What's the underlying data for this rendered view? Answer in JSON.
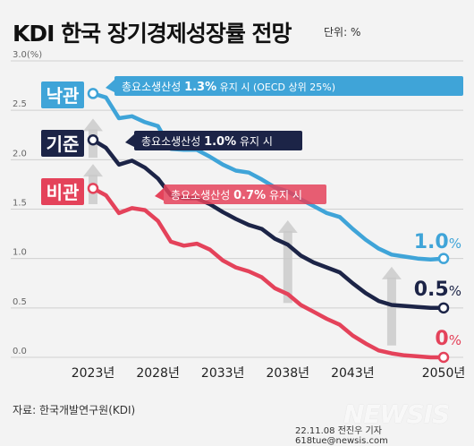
{
  "header": {
    "title": "KDI 한국 장기경제성장률 전망",
    "unit": "단위: %"
  },
  "footer": {
    "source": "자료: 한국개발연구원(KDI)",
    "credit": "22.11.08 전진우 기자 618tue@newsis.com",
    "watermark": "NEWSIS"
  },
  "colors": {
    "optimistic": "#3fa4d8",
    "baseline": "#1c2447",
    "pessimistic": "#e4425a",
    "arrow": "#c8c8c8",
    "grid": "#d0d0d0"
  },
  "chart_data": {
    "type": "line",
    "title": "KDI 한국 장기경제성장률 전망",
    "xlabel": "",
    "ylabel": "",
    "ylim": [
      0,
      3.0
    ],
    "xlim": [
      2023,
      2050
    ],
    "grid": true,
    "y_ticks": [
      "0.0",
      "0.5",
      "1.0",
      "1.5",
      "2.0",
      "2.5",
      "3.0(%)"
    ],
    "x_ticks": [
      "2023년",
      "2028년",
      "2033년",
      "2038년",
      "2043년",
      "2050년"
    ],
    "x_tick_values": [
      2023,
      2028,
      2033,
      2038,
      2043,
      2050
    ],
    "series": [
      {
        "name": "낙관",
        "label": "낙관",
        "annotation_prefix": "총요소생산성 ",
        "annotation_value": "1.3%",
        "annotation_suffix": " 유지 시 (OECD 상위 25%)",
        "end_label_num": "1.0",
        "end_label_pct": "%",
        "x": [
          2023,
          2024,
          2025,
          2026,
          2027,
          2028,
          2029,
          2030,
          2031,
          2032,
          2033,
          2034,
          2035,
          2036,
          2037,
          2038,
          2039,
          2040,
          2041,
          2042,
          2043,
          2044,
          2045,
          2046,
          2047,
          2048,
          2049,
          2050
        ],
        "values": [
          2.67,
          2.63,
          2.42,
          2.44,
          2.38,
          2.34,
          2.11,
          2.1,
          2.1,
          2.03,
          1.95,
          1.89,
          1.87,
          1.8,
          1.72,
          1.68,
          1.6,
          1.53,
          1.46,
          1.42,
          1.3,
          1.19,
          1.1,
          1.04,
          1.02,
          1.0,
          0.99,
          1.0
        ]
      },
      {
        "name": "기준",
        "label": "기준",
        "annotation_prefix": "총요소생산성 ",
        "annotation_value": "1.0%",
        "annotation_suffix": " 유지 시",
        "end_label_num": "0.5",
        "end_label_pct": "%",
        "x": [
          2023,
          2024,
          2025,
          2026,
          2027,
          2028,
          2029,
          2030,
          2031,
          2032,
          2033,
          2034,
          2035,
          2036,
          2037,
          2038,
          2039,
          2040,
          2041,
          2042,
          2043,
          2044,
          2045,
          2046,
          2047,
          2048,
          2049,
          2050
        ],
        "values": [
          2.2,
          2.12,
          1.95,
          1.99,
          1.92,
          1.81,
          1.64,
          1.61,
          1.61,
          1.55,
          1.47,
          1.4,
          1.34,
          1.3,
          1.2,
          1.14,
          1.03,
          0.96,
          0.91,
          0.86,
          0.75,
          0.65,
          0.57,
          0.53,
          0.52,
          0.51,
          0.5,
          0.5
        ]
      },
      {
        "name": "비관",
        "label": "비관",
        "annotation_prefix": "총요소생산성 ",
        "annotation_value": "0.7%",
        "annotation_suffix": " 유지 시",
        "end_label_num": "0",
        "end_label_pct": "%",
        "x": [
          2023,
          2024,
          2025,
          2026,
          2027,
          2028,
          2029,
          2030,
          2031,
          2032,
          2033,
          2034,
          2035,
          2036,
          2037,
          2038,
          2039,
          2040,
          2041,
          2042,
          2043,
          2044,
          2045,
          2046,
          2047,
          2048,
          2049,
          2050
        ],
        "values": [
          1.71,
          1.64,
          1.46,
          1.51,
          1.49,
          1.38,
          1.17,
          1.13,
          1.15,
          1.09,
          0.98,
          0.91,
          0.87,
          0.81,
          0.7,
          0.64,
          0.53,
          0.46,
          0.39,
          0.33,
          0.22,
          0.14,
          0.07,
          0.04,
          0.02,
          0.01,
          0.0,
          0.0
        ]
      }
    ]
  }
}
